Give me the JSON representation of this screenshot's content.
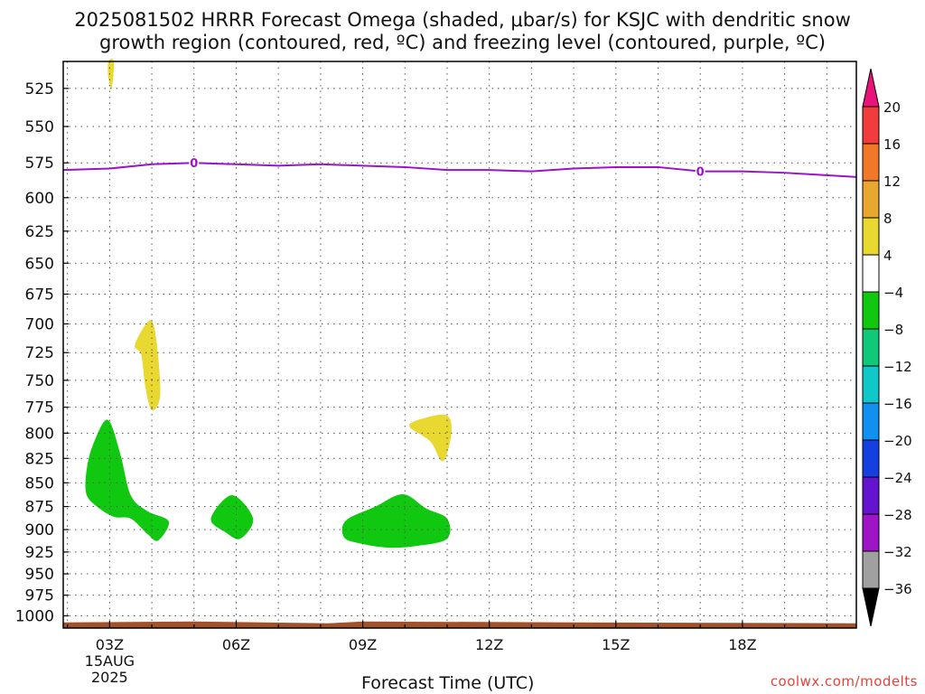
{
  "title_line1": "2025081502 HRRR Forecast Omega (shaded, μbar/s) for KSJC with dendritic snow",
  "title_line2": "growth region (contoured, red, ºC) and freezing level (contoured, purple, ºC)",
  "footer": "coolwx.com/modelts",
  "chart_data": {
    "type": "contour-time-height",
    "title": "2025081502 HRRR Forecast Omega (shaded, μbar/s) for KSJC with dendritic snow growth region (contoured, red, ºC) and freezing level (contoured, purple, ºC)",
    "xlabel": "Forecast Time (UTC)",
    "ylabel": "",
    "x_range_hours_utc": [
      1.9,
      20.7
    ],
    "y_range_hpa": [
      1015,
      508
    ],
    "y_scale": "log-pressure",
    "grid": true,
    "y_ticks": [
      525,
      550,
      575,
      600,
      625,
      650,
      675,
      700,
      725,
      750,
      775,
      800,
      825,
      850,
      875,
      900,
      925,
      950,
      975,
      1000
    ],
    "x_ticks": [
      {
        "hour": 3,
        "label": "03Z",
        "date": "15AUG",
        "year": "2025"
      },
      {
        "hour": 6,
        "label": "06Z"
      },
      {
        "hour": 9,
        "label": "09Z"
      },
      {
        "hour": 12,
        "label": "12Z"
      },
      {
        "hour": 15,
        "label": "15Z"
      },
      {
        "hour": 18,
        "label": "18Z"
      }
    ],
    "colorbar": {
      "levels": [
        20,
        16,
        12,
        8,
        4,
        -4,
        -8,
        -12,
        -16,
        -20,
        -24,
        -28,
        -32,
        -36
      ],
      "colors": [
        "#f03c3c",
        "#f07828",
        "#e8a830",
        "#e8d830",
        "#ffffff",
        "#10c810",
        "#10c878",
        "#10c8c8",
        "#1090f0",
        "#1440e0",
        "#6414d0",
        "#a014c8",
        "#a0a0a0"
      ],
      "top_arrow_color": "#e8147a",
      "bottom_arrow_color": "#000000"
    },
    "freezing_level": {
      "label": "0",
      "color": "#9b14c8",
      "points": [
        [
          1.9,
          580
        ],
        [
          3.0,
          579
        ],
        [
          4.0,
          576
        ],
        [
          5.0,
          575
        ],
        [
          6.0,
          576
        ],
        [
          7.0,
          577
        ],
        [
          8.0,
          576
        ],
        [
          9.0,
          577
        ],
        [
          10.0,
          578
        ],
        [
          11.0,
          580
        ],
        [
          12.0,
          580
        ],
        [
          13.0,
          581
        ],
        [
          14.0,
          579
        ],
        [
          15.0,
          578
        ],
        [
          16.0,
          578
        ],
        [
          17.0,
          581
        ],
        [
          18.0,
          581
        ],
        [
          19.0,
          582
        ],
        [
          20.7,
          585
        ]
      ],
      "label_positions": [
        [
          5.0,
          575
        ],
        [
          17.0,
          581
        ]
      ]
    },
    "omega_regions": [
      {
        "range": "4 to 8",
        "color": "#e8d830",
        "points": [
          [
            2.97,
            508
          ],
          [
            3.1,
            508
          ],
          [
            3.05,
            525
          ],
          [
            2.97,
            518
          ]
        ]
      },
      {
        "range": "4 to 8",
        "color": "#e8d830",
        "points": [
          [
            3.6,
            718
          ],
          [
            3.95,
            697
          ],
          [
            4.1,
            712
          ],
          [
            4.2,
            763
          ],
          [
            4.0,
            778
          ],
          [
            3.85,
            757
          ],
          [
            3.75,
            727
          ]
        ]
      },
      {
        "range": "4 to 8",
        "color": "#e8d830",
        "points": [
          [
            10.1,
            793
          ],
          [
            10.5,
            785
          ],
          [
            11.0,
            783
          ],
          [
            11.1,
            800
          ],
          [
            10.9,
            828
          ],
          [
            10.6,
            808
          ]
        ]
      },
      {
        "range": "-4 to -8",
        "color": "#10c810",
        "points": [
          [
            2.45,
            838
          ],
          [
            2.6,
            812
          ],
          [
            2.95,
            787
          ],
          [
            3.25,
            820
          ],
          [
            3.5,
            863
          ],
          [
            3.9,
            880
          ],
          [
            4.4,
            891
          ],
          [
            4.15,
            912
          ],
          [
            3.9,
            905
          ],
          [
            3.5,
            888
          ],
          [
            3.1,
            886
          ],
          [
            2.7,
            875
          ],
          [
            2.45,
            862
          ]
        ]
      },
      {
        "range": "-4 to -8",
        "color": "#10c810",
        "points": [
          [
            5.4,
            888
          ],
          [
            5.9,
            863
          ],
          [
            6.4,
            888
          ],
          [
            6.1,
            910
          ],
          [
            5.75,
            903
          ]
        ]
      },
      {
        "range": "-4 to -8",
        "color": "#10c810",
        "points": [
          [
            8.6,
            890
          ],
          [
            9.3,
            875
          ],
          [
            9.95,
            862
          ],
          [
            10.5,
            877
          ],
          [
            11.0,
            888
          ],
          [
            11.0,
            910
          ],
          [
            10.3,
            918
          ],
          [
            9.6,
            920
          ],
          [
            8.9,
            915
          ],
          [
            8.55,
            908
          ]
        ]
      }
    ],
    "surface": {
      "color": "#a0522d",
      "top_hpa": 1008
    }
  }
}
